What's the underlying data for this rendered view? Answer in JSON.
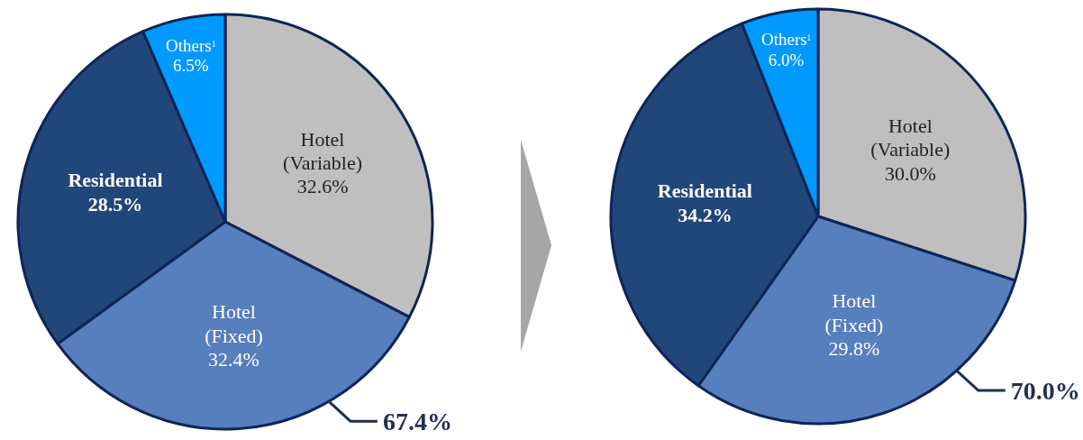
{
  "chart_data": [
    {
      "type": "pie",
      "categories": [
        "Hotel (Variable)",
        "Hotel (Fixed)",
        "Residential",
        "Others$^{1}$"
      ],
      "values": [
        32.6,
        32.4,
        28.5,
        6.5
      ],
      "value_labels": [
        "32.6%",
        "32.4%",
        "28.5%",
        "6.5%"
      ],
      "colors": [
        "#bfbfbf",
        "#577ebd",
        "#21467a",
        "#0099ff"
      ],
      "annotations": [
        "67.4%"
      ]
    },
    {
      "type": "pie",
      "categories": [
        "Hotel (Variable)",
        "Hotel (Fixed)",
        "Residential",
        "Others$^{1}$"
      ],
      "values": [
        30.0,
        29.8,
        34.2,
        6.0
      ],
      "value_labels": [
        "30.0%",
        "29.8%",
        "34.2%",
        "6.0%"
      ],
      "colors": [
        "#bfbfbf",
        "#577ebd",
        "#21467a",
        "#0099ff"
      ],
      "annotations": [
        "70.0%"
      ]
    }
  ]
}
